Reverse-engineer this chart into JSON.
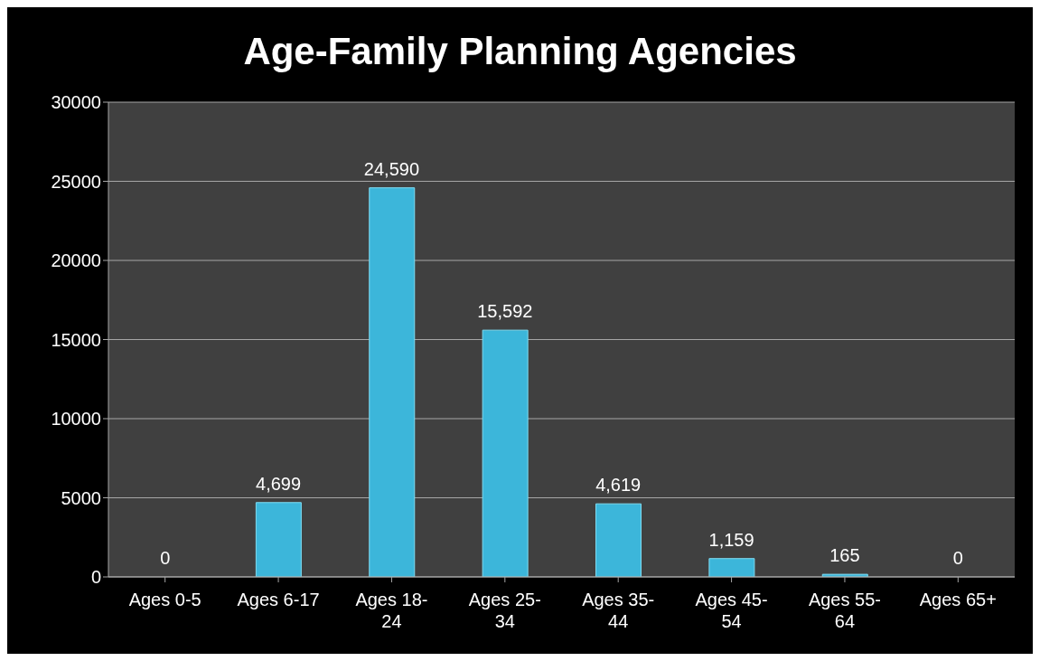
{
  "chart_data": {
    "type": "bar",
    "title": "Age-Family Planning Agencies",
    "categories": [
      "Ages 0-5",
      "Ages 6-17",
      "Ages 18-24",
      "Ages 25-34",
      "Ages 35-44",
      "Ages 45-54",
      "Ages 55-64",
      "Ages 65+"
    ],
    "values": [
      0,
      4699,
      24590,
      15592,
      4619,
      1159,
      165,
      0
    ],
    "value_labels": [
      "0",
      "4,699",
      "24,590",
      "15,592",
      "4,619",
      "1,159",
      "165",
      "0"
    ],
    "color": "#3cb6da",
    "ylim": [
      0,
      30000
    ],
    "yticks": [
      0,
      5000,
      10000,
      15000,
      20000,
      25000,
      30000
    ],
    "grid": "y",
    "legend": false
  }
}
